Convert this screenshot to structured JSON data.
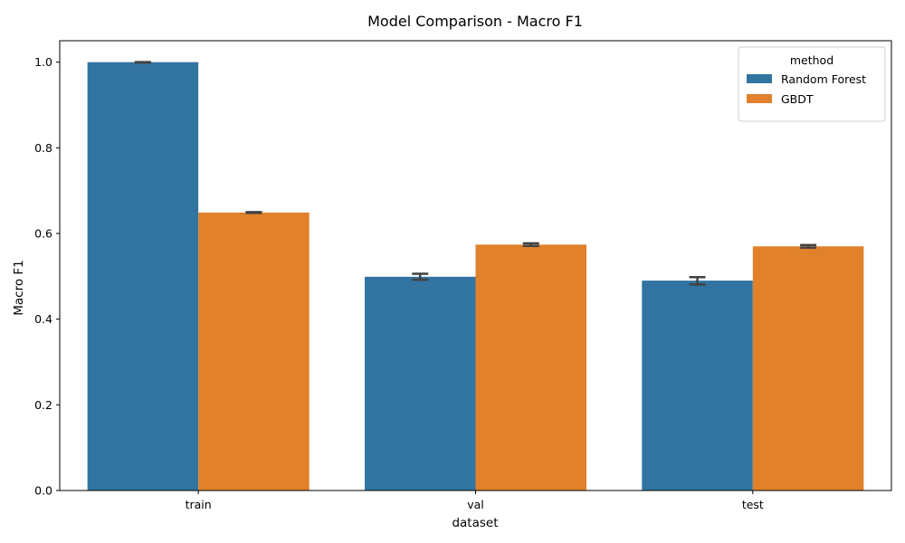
{
  "chart_data": {
    "type": "bar",
    "title": "Model Comparison - Macro F1",
    "xlabel": "dataset",
    "ylabel": "Macro F1",
    "categories": [
      "train",
      "val",
      "test"
    ],
    "ylim": [
      0,
      1.05
    ],
    "yticks": [
      0.0,
      0.2,
      0.4,
      0.6,
      0.8,
      1.0
    ],
    "ytick_labels": [
      "0.0",
      "0.2",
      "0.4",
      "0.6",
      "0.8",
      "1.0"
    ],
    "grid": false,
    "legend": {
      "title": "method",
      "placement": "top-right"
    },
    "series": [
      {
        "name": "Random Forest",
        "color": "#3274a1",
        "values": [
          1.0,
          0.499,
          0.49
        ],
        "error_low": [
          0.999,
          0.492,
          0.481
        ],
        "error_high": [
          1.0,
          0.506,
          0.498
        ]
      },
      {
        "name": "GBDT",
        "color": "#e1812c",
        "values": [
          0.649,
          0.574,
          0.57
        ],
        "error_low": [
          0.648,
          0.571,
          0.567
        ],
        "error_high": [
          0.65,
          0.577,
          0.573
        ]
      }
    ],
    "errorbar_color": "#424242"
  }
}
